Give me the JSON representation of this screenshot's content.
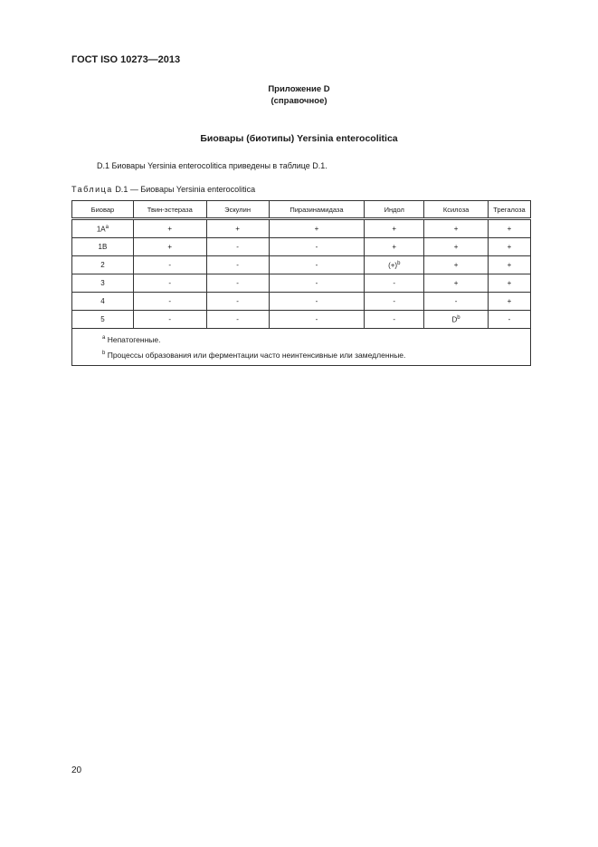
{
  "header": "ГОСТ ISO 10273—2013",
  "annex": {
    "title": "Приложение D",
    "type": "(справочное)"
  },
  "section_title": "Биовары (биотипы) Yersinia enterocolitica",
  "paragraph": "D.1 Биовары Yersinia enterocolitica приведены в таблице D.1.",
  "table": {
    "caption_label": "Таблица",
    "caption_rest": "D.1 — Биовары Yersinia enterocolitica",
    "columns": [
      "Биовар",
      "Твин-эстераза",
      "Эскулин",
      "Пиразинамидаза",
      "Индол",
      "Ксилоза",
      "Трегалоза"
    ],
    "rows": [
      [
        {
          "t": "1A",
          "s": "a"
        },
        {
          "t": "+"
        },
        {
          "t": "+"
        },
        {
          "t": "+"
        },
        {
          "t": "+"
        },
        {
          "t": "+"
        },
        {
          "t": "+"
        }
      ],
      [
        {
          "t": "1B"
        },
        {
          "t": "+"
        },
        {
          "t": "-"
        },
        {
          "t": "-"
        },
        {
          "t": "+"
        },
        {
          "t": "+"
        },
        {
          "t": "+"
        }
      ],
      [
        {
          "t": "2"
        },
        {
          "t": "-"
        },
        {
          "t": "-"
        },
        {
          "t": "-"
        },
        {
          "t": "(+)",
          "s": "b"
        },
        {
          "t": "+"
        },
        {
          "t": "+"
        }
      ],
      [
        {
          "t": "3"
        },
        {
          "t": "-"
        },
        {
          "t": "-"
        },
        {
          "t": "-"
        },
        {
          "t": "-"
        },
        {
          "t": "+"
        },
        {
          "t": "+"
        }
      ],
      [
        {
          "t": "4"
        },
        {
          "t": "-"
        },
        {
          "t": "-"
        },
        {
          "t": "-"
        },
        {
          "t": "-"
        },
        {
          "t": "-"
        },
        {
          "t": "+"
        }
      ],
      [
        {
          "t": "5"
        },
        {
          "t": "-"
        },
        {
          "t": "-"
        },
        {
          "t": "-"
        },
        {
          "t": "-"
        },
        {
          "t": "D",
          "s": "b"
        },
        {
          "t": "-"
        }
      ]
    ],
    "notes": [
      {
        "mark": "a",
        "text": " Непатогенные."
      },
      {
        "mark": "b",
        "text": " Процессы образования или ферментации часто неинтенсивные или замедленные."
      }
    ]
  },
  "page_number": "20"
}
